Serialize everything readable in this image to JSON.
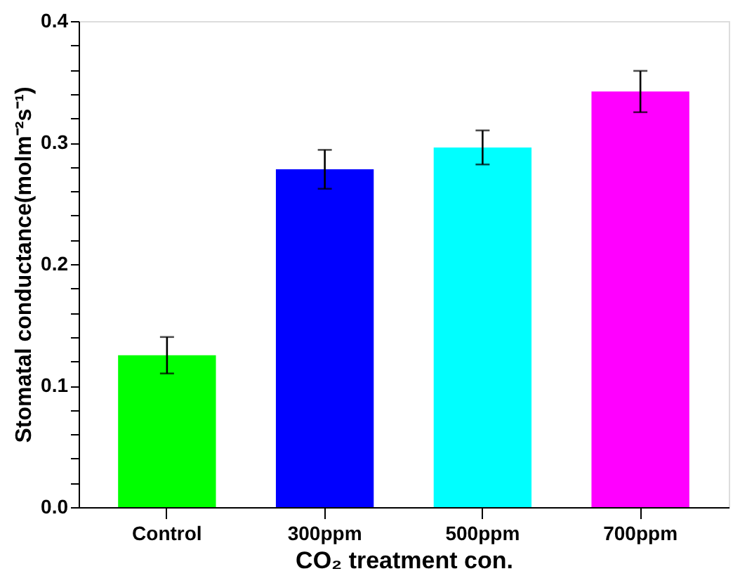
{
  "chart_data": {
    "type": "bar",
    "xlabel": "CO₂ treatment con.",
    "ylabel": "Stomatal conductance(molm⁻²s⁻¹)",
    "categories": [
      "Control",
      "300ppm",
      "500ppm",
      "700ppm"
    ],
    "values": [
      0.125,
      0.278,
      0.296,
      0.342
    ],
    "errors": [
      0.015,
      0.016,
      0.014,
      0.017
    ],
    "colors": [
      "#00ff00",
      "#0000ff",
      "#00ffff",
      "#ff00ff"
    ],
    "ylim": [
      0,
      0.4
    ],
    "yticks": [
      {
        "value": 0,
        "label": "0.0"
      },
      {
        "value": 0.02,
        "label": null
      },
      {
        "value": 0.04,
        "label": null
      },
      {
        "value": 0.06,
        "label": null
      },
      {
        "value": 0.08,
        "label": null
      },
      0.1,
      {
        "value": 0.12,
        "label": null
      },
      {
        "value": 0.14,
        "label": null
      },
      {
        "value": 0.16,
        "label": null
      },
      {
        "value": 0.18,
        "label": null
      },
      0.2,
      {
        "value": 0.22,
        "label": null
      },
      {
        "value": 0.24,
        "label": null
      },
      {
        "value": 0.26,
        "label": null
      },
      {
        "value": 0.28,
        "label": null
      },
      0.3,
      {
        "value": 0.32,
        "label": null
      },
      {
        "value": 0.34,
        "label": null
      },
      {
        "value": 0.36,
        "label": null
      },
      {
        "value": 0.38,
        "label": null
      },
      0.4
    ],
    "grid": false
  }
}
